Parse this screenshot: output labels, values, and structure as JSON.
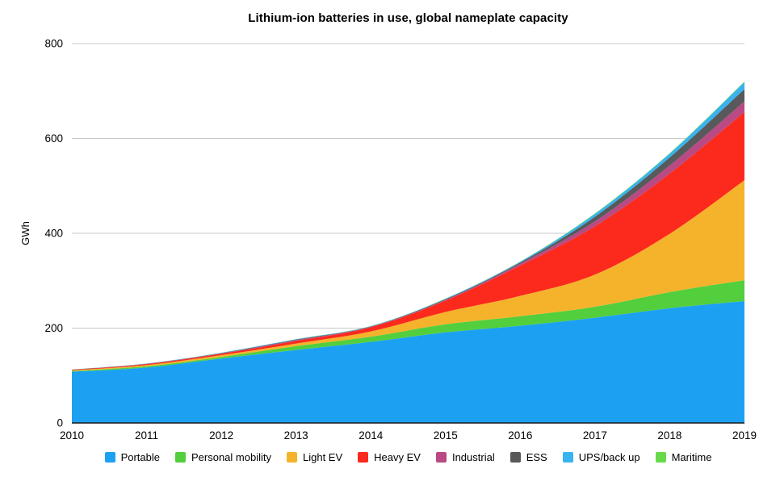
{
  "title": "Lithium-ion batteries in use, global nameplate capacity",
  "chart_data": {
    "type": "area",
    "stacked": true,
    "title": "Lithium-ion batteries in use, global nameplate capacity",
    "xlabel": "",
    "ylabel": "GWh",
    "x": [
      2010,
      2011,
      2012,
      2013,
      2014,
      2015,
      2016,
      2017,
      2018,
      2019
    ],
    "yticks": [
      0,
      200,
      400,
      600,
      800
    ],
    "ylim": [
      0,
      800
    ],
    "grid": true,
    "legend_position": "bottom",
    "series": [
      {
        "name": "Portable",
        "color": "#1CA1F2",
        "values": [
          108,
          117,
          136,
          154,
          171,
          191,
          205,
          222,
          242,
          257
        ]
      },
      {
        "name": "Personal mobility",
        "color": "#53CE3D",
        "values": [
          1.5,
          2.7,
          3.4,
          8,
          11,
          17,
          20,
          23,
          34,
          44
        ]
      },
      {
        "name": "Light EV",
        "color": "#F5B32B",
        "values": [
          1.5,
          2.4,
          3.6,
          5.5,
          11,
          26,
          43,
          68,
          123,
          211
        ]
      },
      {
        "name": "Heavy EV",
        "color": "#FB2A1D",
        "values": [
          1,
          2,
          3,
          5.5,
          9,
          24,
          64,
          102,
          127,
          144
        ]
      },
      {
        "name": "Industrial",
        "color": "#B94A83",
        "values": [
          0.3,
          0.5,
          0.8,
          1.5,
          1,
          1.5,
          4,
          10,
          17,
          22
        ]
      },
      {
        "name": "ESS",
        "color": "#58595B",
        "values": [
          0.2,
          0.4,
          0.7,
          1.2,
          0.7,
          1.5,
          2.5,
          10,
          17,
          26
        ]
      },
      {
        "name": "UPS/back up",
        "color": "#38B3EE",
        "values": [
          0.2,
          0.3,
          0.5,
          0.8,
          0.5,
          1,
          1.5,
          6,
          8,
          15
        ]
      },
      {
        "name": "Maritime",
        "color": "#68D94A",
        "values": [
          0.1,
          0.1,
          0.2,
          0.3,
          0.2,
          0.3,
          0.5,
          1,
          1,
          1
        ]
      }
    ],
    "colors": {
      "gridline": "#C9C9C9",
      "axis_line": "#1A1A1A",
      "tick_text": "#000000",
      "background": "#FFFFFF"
    }
  }
}
